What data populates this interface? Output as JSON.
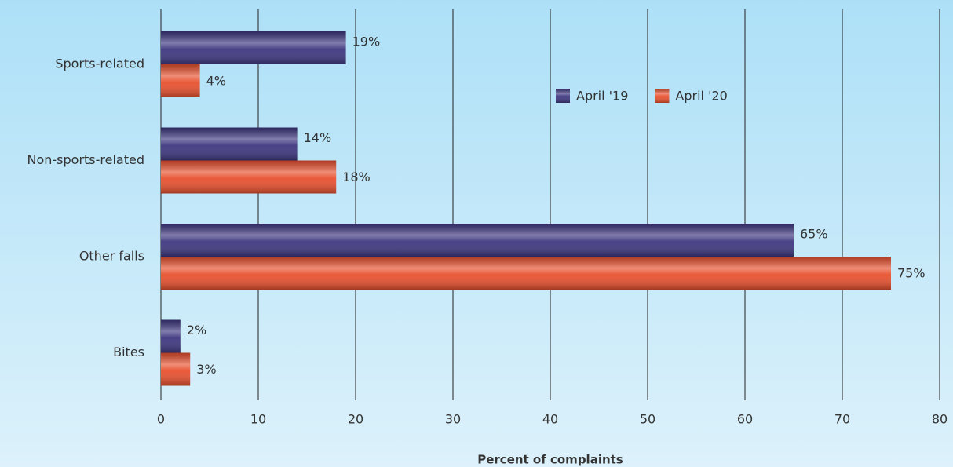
{
  "chart_data": {
    "type": "bar",
    "orientation": "horizontal",
    "x_label": "Percent of complaints",
    "categories": [
      "Sports-related",
      "Non-sports-related",
      "Other falls",
      "Bites"
    ],
    "series": [
      {
        "name": "April '19",
        "color": "#3e3780",
        "values": [
          19,
          14,
          65,
          2
        ],
        "value_labels": [
          "19%",
          "14%",
          "65%",
          "2%"
        ]
      },
      {
        "name": "April '20",
        "color": "#e8512f",
        "values": [
          4,
          18,
          75,
          3
        ],
        "value_labels": [
          "4%",
          "18%",
          "75%",
          "3%"
        ]
      }
    ],
    "xlim": [
      0,
      80
    ],
    "xticks": [
      0,
      10,
      20,
      30,
      40,
      50,
      60,
      70,
      80
    ],
    "grid": true
  }
}
